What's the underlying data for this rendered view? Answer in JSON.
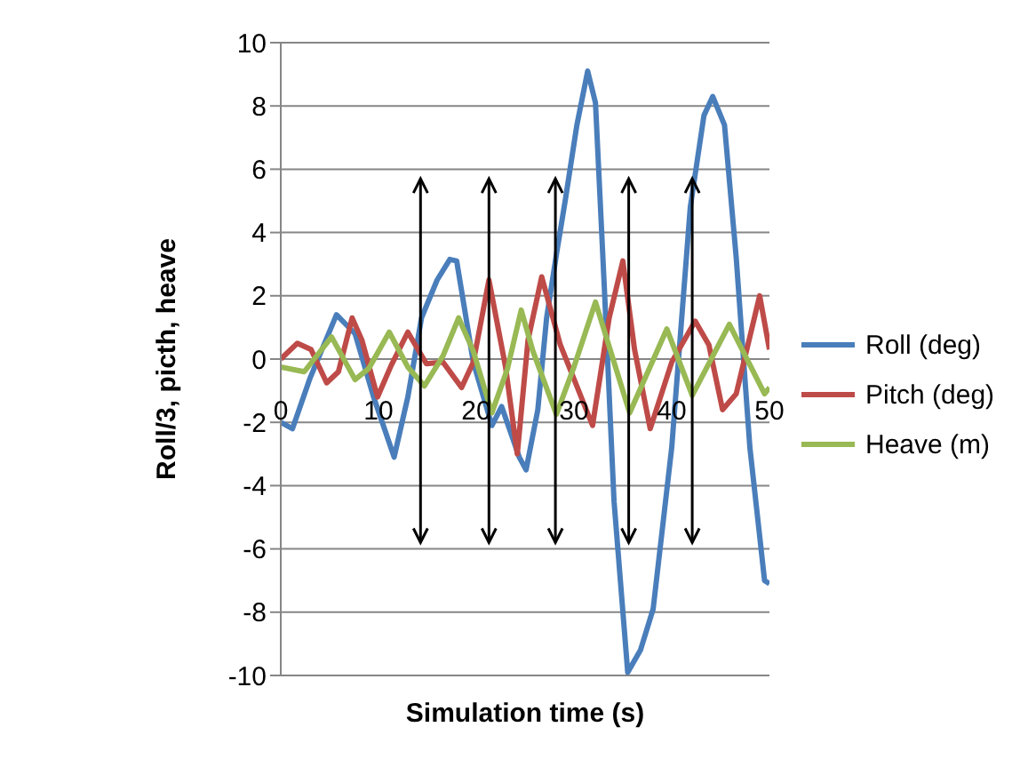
{
  "chart_data": {
    "type": "line",
    "xlabel": "Simulation time (s)",
    "ylabel": "Roll/3, picth, heave",
    "xlim": [
      0,
      50
    ],
    "xticks": [
      0,
      10,
      20,
      30,
      40,
      50
    ],
    "ylim": [
      -10,
      10
    ],
    "yticks": [
      -10,
      -8,
      -6,
      -4,
      -2,
      0,
      2,
      4,
      6,
      8,
      10
    ],
    "grid": "y",
    "legend": "right",
    "marker": "none",
    "line_style": "solid",
    "series": [
      {
        "name": "Roll (deg)",
        "color": "#4a7ebb",
        "x": [
          0,
          1.2,
          3,
          5.7,
          7.6,
          9.5,
          11.6,
          13,
          14.4,
          16,
          17.3,
          18,
          19.7,
          21.6,
          22.6,
          24.4,
          25.1,
          26.3,
          27.2,
          28.2,
          29.1,
          30.3,
          31.4,
          32.2,
          33.1,
          34.1,
          35.5,
          36.8,
          38.1,
          40,
          41.9,
          43.3,
          44.2,
          45.4,
          46.6,
          48,
          49.5,
          50
        ],
        "values": [
          -2.0,
          -2.2,
          -0.6,
          1.4,
          0.8,
          -1.2,
          -3.1,
          -1.2,
          1.3,
          2.5,
          3.15,
          3.1,
          -0.1,
          -2.1,
          -1.5,
          -3.1,
          -3.5,
          -1.6,
          1.3,
          3.3,
          5.0,
          7.4,
          9.1,
          8.1,
          2.3,
          -4.5,
          -9.9,
          -9.2,
          -7.9,
          -2.8,
          4.8,
          7.7,
          8.3,
          7.4,
          3.2,
          -2.8,
          -7.0,
          -7.1
        ]
      },
      {
        "name": "Pitch (deg)",
        "color": "#be4b48",
        "x": [
          0,
          1.7,
          3.1,
          4.7,
          5.9,
          7.3,
          8.3,
          9.9,
          11.3,
          13,
          14.9,
          16.6,
          18.5,
          19.7,
          21.3,
          23,
          24.2,
          25.3,
          26.7,
          28.6,
          31.9,
          33.6,
          35,
          36.2,
          37.8,
          40,
          42.4,
          43.8,
          45.2,
          46.6,
          49,
          50
        ],
        "values": [
          0,
          0.5,
          0.3,
          -0.75,
          -0.4,
          1.3,
          0.6,
          -1.2,
          -0.2,
          0.85,
          -0.15,
          -0.1,
          -0.9,
          -0.1,
          2.5,
          -0.25,
          -3.0,
          0.6,
          2.6,
          0.45,
          -2.1,
          1.3,
          3.1,
          0.3,
          -2.2,
          -0.1,
          1.2,
          0.45,
          -1.6,
          -1.1,
          2.0,
          0.3
        ]
      },
      {
        "name": "Heave (m)",
        "color": "#98b954",
        "x": [
          0,
          2.4,
          5.2,
          7.6,
          9,
          11.1,
          13,
          14.7,
          16.6,
          18.2,
          19.7,
          21.6,
          23.2,
          24.6,
          25.8,
          28.2,
          30,
          32.2,
          35.7,
          39.5,
          42.1,
          45.9,
          49.5,
          50
        ],
        "values": [
          -0.25,
          -0.4,
          0.7,
          -0.65,
          -0.3,
          0.85,
          -0.25,
          -0.85,
          0.1,
          1.3,
          0.25,
          -1.7,
          -0.3,
          1.55,
          0.25,
          -1.75,
          -0.25,
          1.8,
          -1.7,
          0.95,
          -1.15,
          1.1,
          -1.1,
          -0.9
        ]
      }
    ],
    "ref_lines": [
      {
        "axis": "x",
        "value": 14.3,
        "color": "#000000"
      },
      {
        "axis": "x",
        "value": 21.3,
        "color": "#000000"
      },
      {
        "axis": "x",
        "value": 28.1,
        "color": "#000000"
      },
      {
        "axis": "x",
        "value": 35.6,
        "color": "#000000"
      },
      {
        "axis": "x",
        "value": 42.1,
        "color": "#000000"
      }
    ]
  }
}
